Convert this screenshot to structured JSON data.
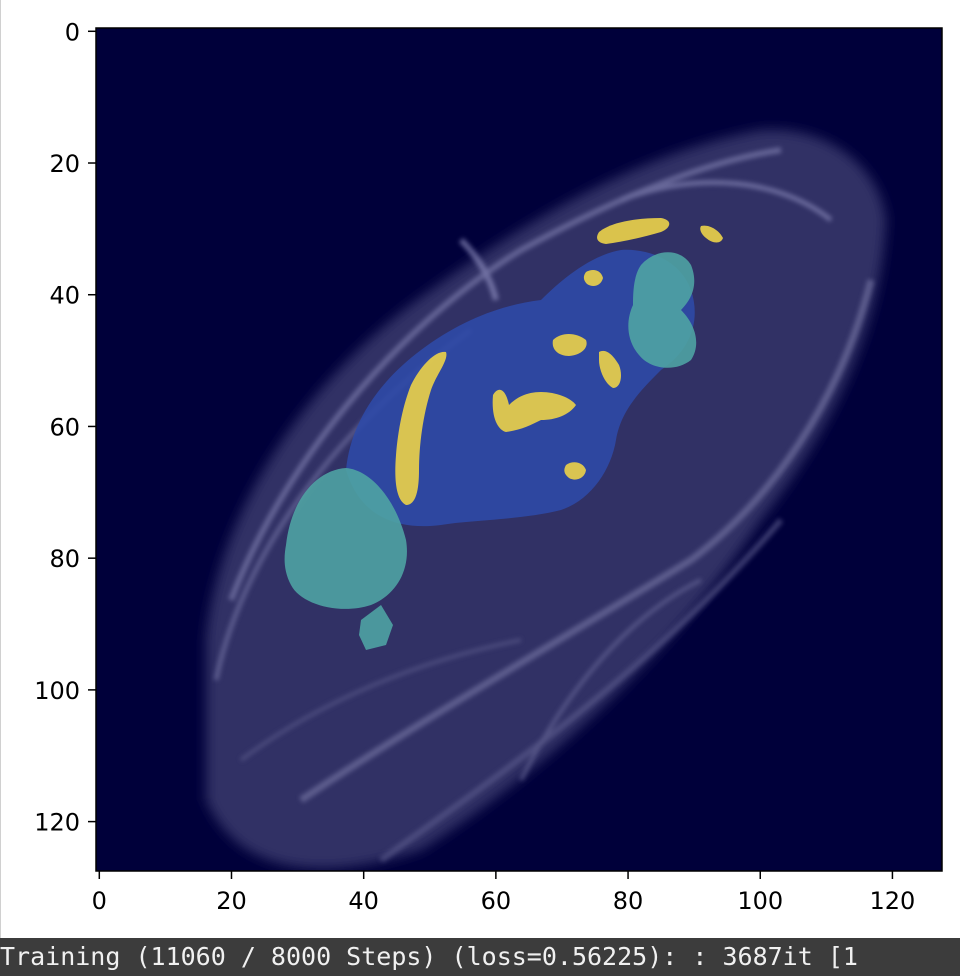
{
  "figure": {
    "x_ticks": [
      "0",
      "20",
      "40",
      "60",
      "80",
      "100",
      "120"
    ],
    "y_ticks": [
      "0",
      "20",
      "40",
      "60",
      "80",
      "100",
      "120"
    ],
    "colors": {
      "background": "#00003a",
      "frame": "#000000",
      "tissue": "#6a6a9a",
      "label_blue": "#2e4aa8",
      "label_teal": "#4fa3a3",
      "label_yellow": "#e8cf4a"
    }
  },
  "chart_data": {
    "type": "heatmap",
    "title": "",
    "xlabel": "",
    "ylabel": "",
    "xlim": [
      0,
      127
    ],
    "ylim": [
      127,
      0
    ],
    "grid": false,
    "x_tick_values": [
      0,
      20,
      40,
      60,
      80,
      100,
      120
    ],
    "y_tick_values": [
      0,
      20,
      40,
      60,
      80,
      100,
      120
    ],
    "content": "MRI slice with segmentation overlay: blue, teal and yellow label regions"
  },
  "status": {
    "progress_text": "Training (11060 / 8000 Steps) (loss=0.56225): : 3687it [1"
  }
}
